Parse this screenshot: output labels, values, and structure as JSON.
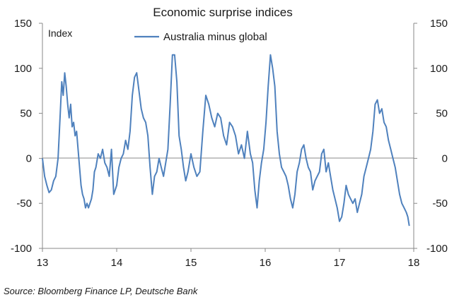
{
  "chart_data": {
    "type": "line",
    "title": "Economic surprise indices",
    "ylabel": "Index",
    "ylim": [
      -100,
      150
    ],
    "y_ticks": [
      "150",
      "100",
      "50",
      "0",
      "-50",
      "-100"
    ],
    "xlim": [
      13,
      18
    ],
    "x_ticks": [
      "13",
      "14",
      "15",
      "16",
      "17",
      "18"
    ],
    "legend_position": "top-center",
    "grid": false,
    "series": [
      {
        "name": "Australia minus global",
        "color": "#4f81bd",
        "x": [
          13.0,
          13.03,
          13.06,
          13.09,
          13.12,
          13.15,
          13.18,
          13.21,
          13.24,
          13.26,
          13.28,
          13.3,
          13.32,
          13.34,
          13.36,
          13.38,
          13.4,
          13.42,
          13.44,
          13.46,
          13.48,
          13.5,
          13.52,
          13.54,
          13.56,
          13.58,
          13.6,
          13.62,
          13.64,
          13.66,
          13.68,
          13.7,
          13.72,
          13.75,
          13.78,
          13.81,
          13.84,
          13.87,
          13.9,
          13.93,
          13.96,
          13.98,
          14.0,
          14.03,
          14.06,
          14.09,
          14.12,
          14.15,
          14.18,
          14.21,
          14.24,
          14.27,
          14.3,
          14.33,
          14.36,
          14.39,
          14.42,
          14.45,
          14.48,
          14.51,
          14.54,
          14.57,
          14.6,
          14.63,
          14.66,
          14.69,
          14.72,
          14.75,
          14.78,
          14.81,
          14.84,
          14.87,
          14.9,
          14.93,
          14.96,
          15.0,
          15.04,
          15.08,
          15.12,
          15.16,
          15.2,
          15.24,
          15.28,
          15.32,
          15.36,
          15.4,
          15.44,
          15.48,
          15.52,
          15.56,
          15.6,
          15.64,
          15.68,
          15.72,
          15.76,
          15.8,
          15.83,
          15.86,
          15.89,
          15.92,
          15.95,
          15.98,
          16.01,
          16.04,
          16.07,
          16.1,
          16.13,
          16.16,
          16.19,
          16.22,
          16.25,
          16.28,
          16.31,
          16.34,
          16.37,
          16.4,
          16.43,
          16.46,
          16.49,
          16.52,
          16.55,
          16.58,
          16.61,
          16.64,
          16.67,
          16.7,
          16.73,
          16.76,
          16.79,
          16.82,
          16.85,
          16.88,
          16.91,
          16.94,
          16.97,
          17.0,
          17.03,
          17.06,
          17.09,
          17.12,
          17.15,
          17.18,
          17.21,
          17.24,
          17.27,
          17.3,
          17.33,
          17.36,
          17.39,
          17.42,
          17.45,
          17.48,
          17.51,
          17.54,
          17.57,
          17.6,
          17.63,
          17.66,
          17.69,
          17.72,
          17.75,
          17.78,
          17.81,
          17.84,
          17.87,
          17.9,
          17.92,
          17.94
        ],
        "values": [
          0,
          -20,
          -30,
          -38,
          -35,
          -25,
          -20,
          0,
          50,
          85,
          70,
          95,
          80,
          60,
          45,
          60,
          35,
          40,
          25,
          30,
          10,
          -10,
          -30,
          -40,
          -45,
          -55,
          -50,
          -55,
          -50,
          -45,
          -35,
          -15,
          -10,
          5,
          0,
          10,
          -5,
          -10,
          -20,
          10,
          -40,
          -35,
          -30,
          -10,
          0,
          5,
          20,
          10,
          30,
          70,
          90,
          95,
          75,
          55,
          45,
          40,
          25,
          -10,
          -40,
          -20,
          -15,
          0,
          -10,
          -20,
          -5,
          10,
          60,
          115,
          115,
          85,
          25,
          10,
          -10,
          -25,
          -15,
          5,
          -10,
          -20,
          -15,
          30,
          70,
          60,
          45,
          35,
          50,
          45,
          25,
          15,
          40,
          35,
          25,
          5,
          15,
          0,
          30,
          5,
          -5,
          -35,
          -55,
          -25,
          -5,
          10,
          40,
          80,
          115,
          100,
          80,
          30,
          5,
          -10,
          -15,
          -20,
          -30,
          -45,
          -55,
          -40,
          -15,
          -5,
          10,
          15,
          0,
          -10,
          -15,
          -35,
          -25,
          -20,
          -15,
          5,
          10,
          -15,
          -5,
          -20,
          -35,
          -45,
          -55,
          -70,
          -65,
          -50,
          -30,
          -40,
          -45,
          -50,
          -45,
          -60,
          -50,
          -40,
          -20,
          -10,
          0,
          10,
          30,
          60,
          65,
          50,
          55,
          40,
          35,
          20,
          10,
          0,
          -10,
          -25,
          -40,
          -50,
          -55,
          -60,
          -65,
          -75
        ]
      }
    ]
  },
  "source_note": "Source: Bloomberg Finance LP, Deutsche Bank"
}
